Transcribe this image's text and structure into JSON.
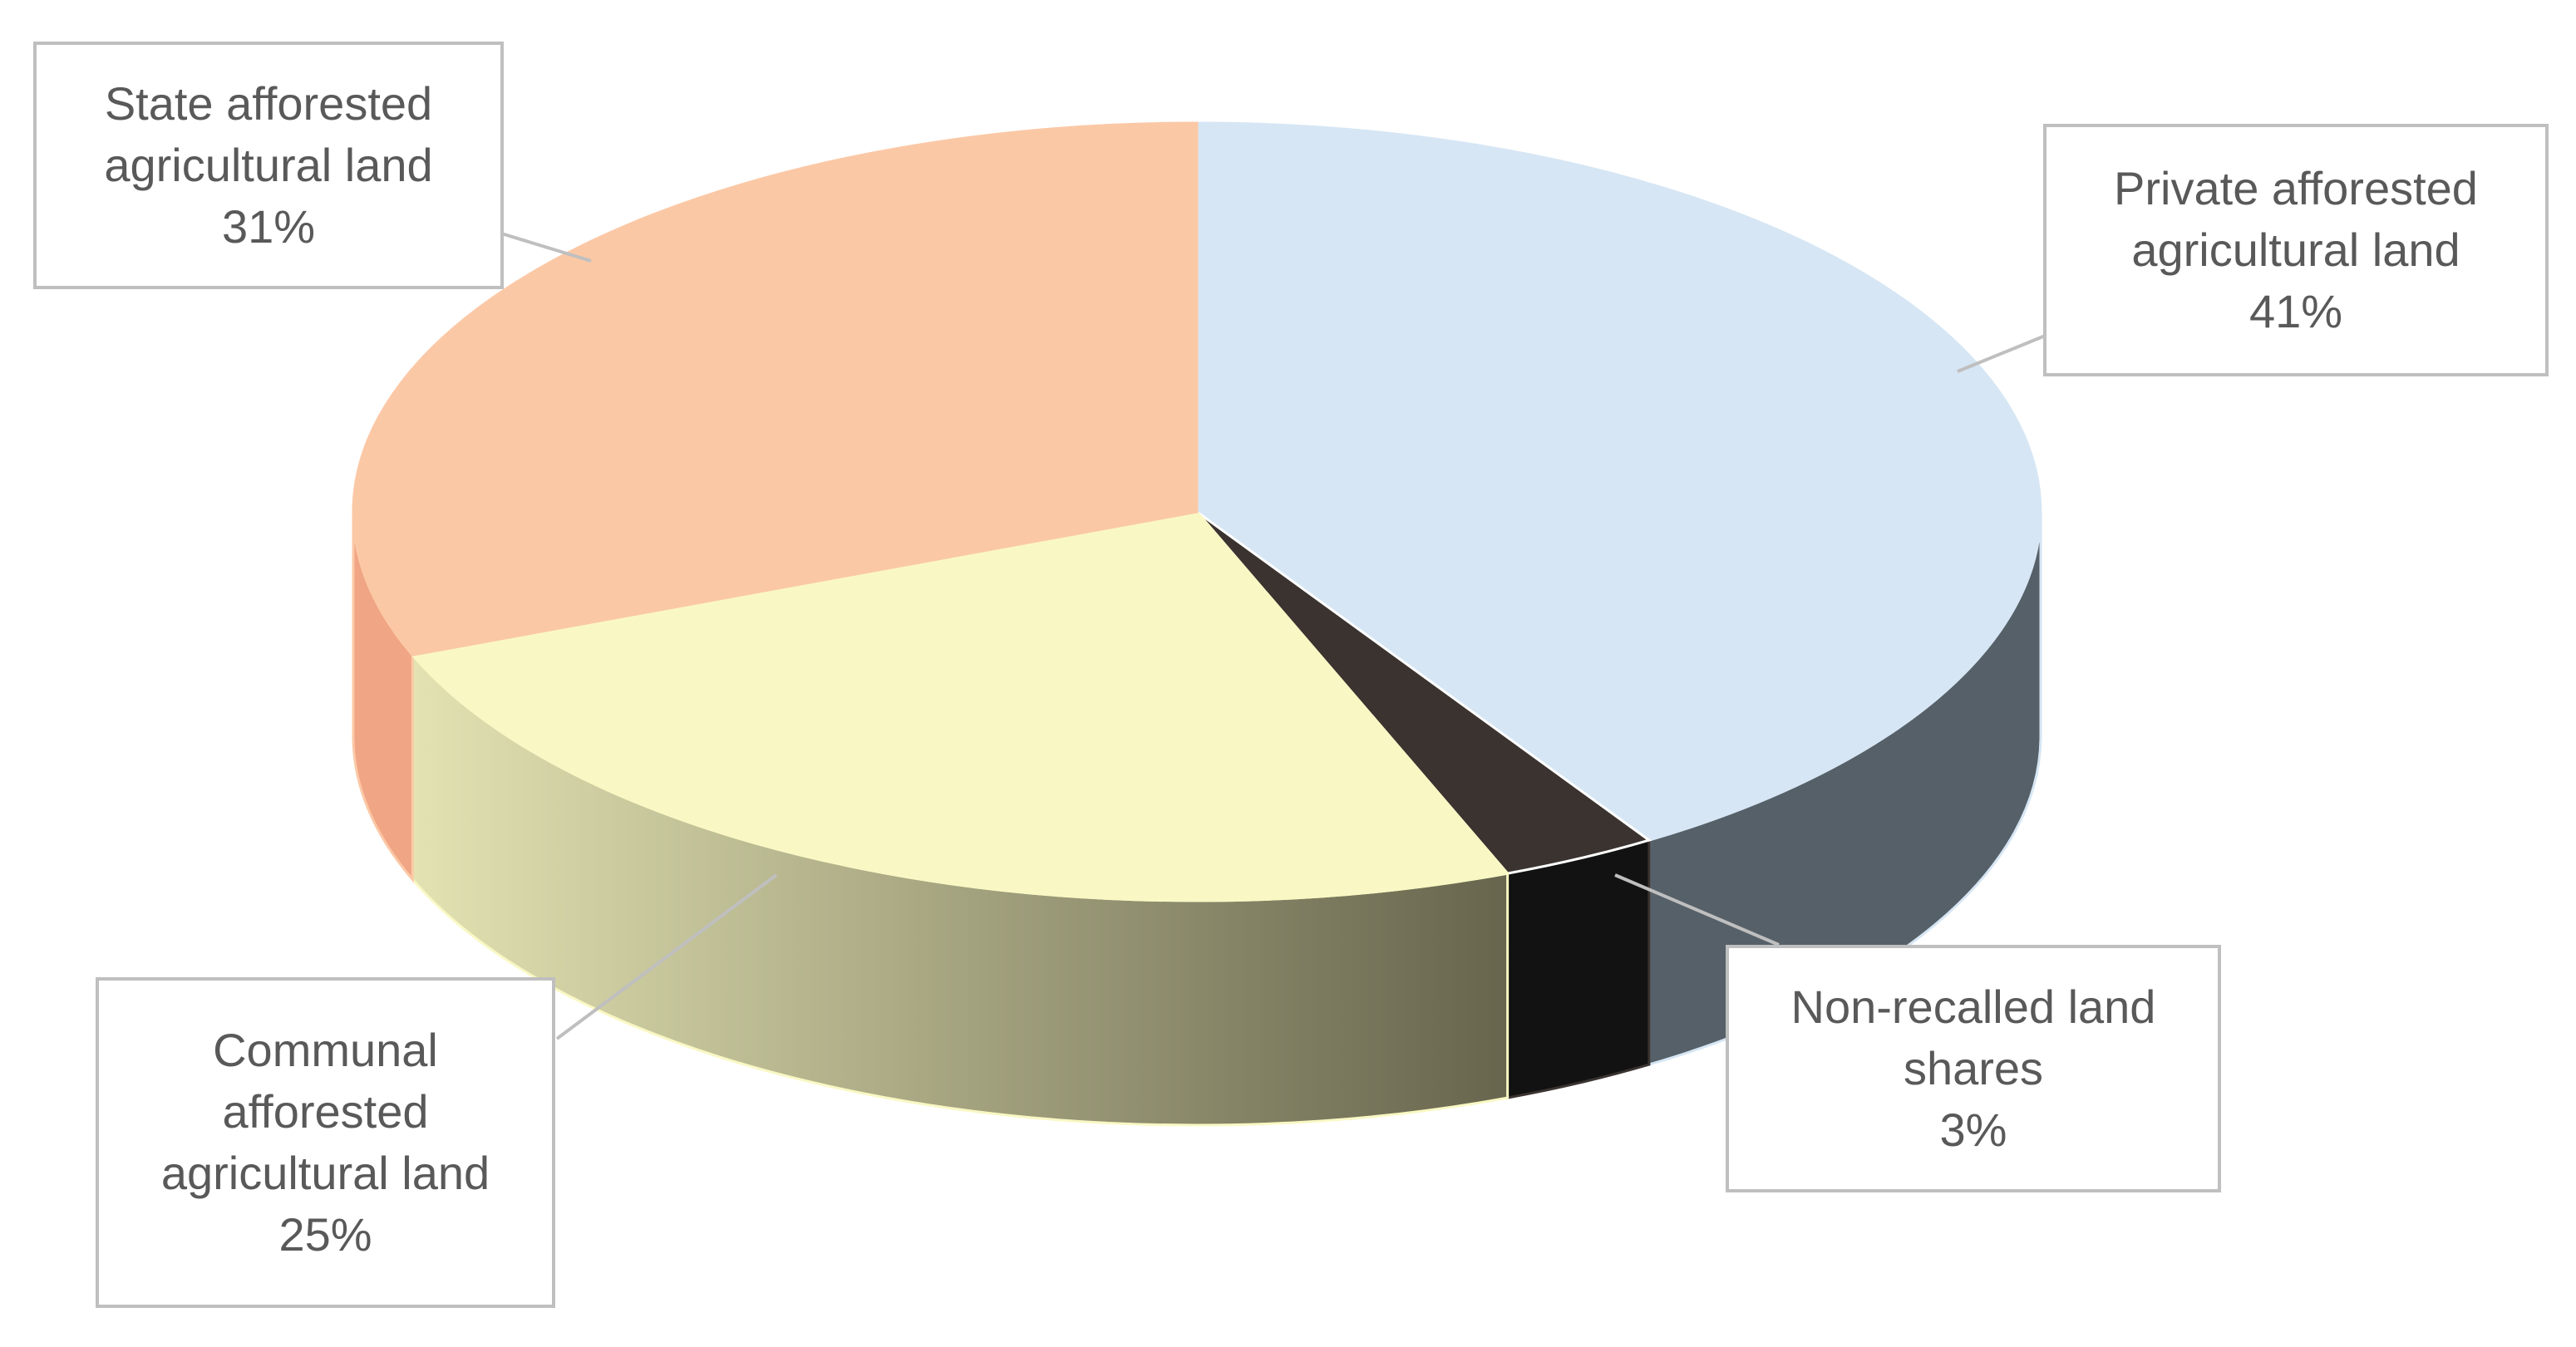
{
  "chart_data": {
    "type": "pie",
    "categories": [
      "Private afforested agricultural land",
      "Non-recalled land shares",
      "Communal afforested agricultural land",
      "State afforested agricultural land"
    ],
    "values": [
      41,
      3,
      25,
      31
    ],
    "value_labels": [
      "41%",
      "3%",
      "25%",
      "31%"
    ],
    "colors": [
      "#d6e6f4",
      "#3a3330",
      "#f9f8c4",
      "#fbc8a6"
    ]
  }
}
